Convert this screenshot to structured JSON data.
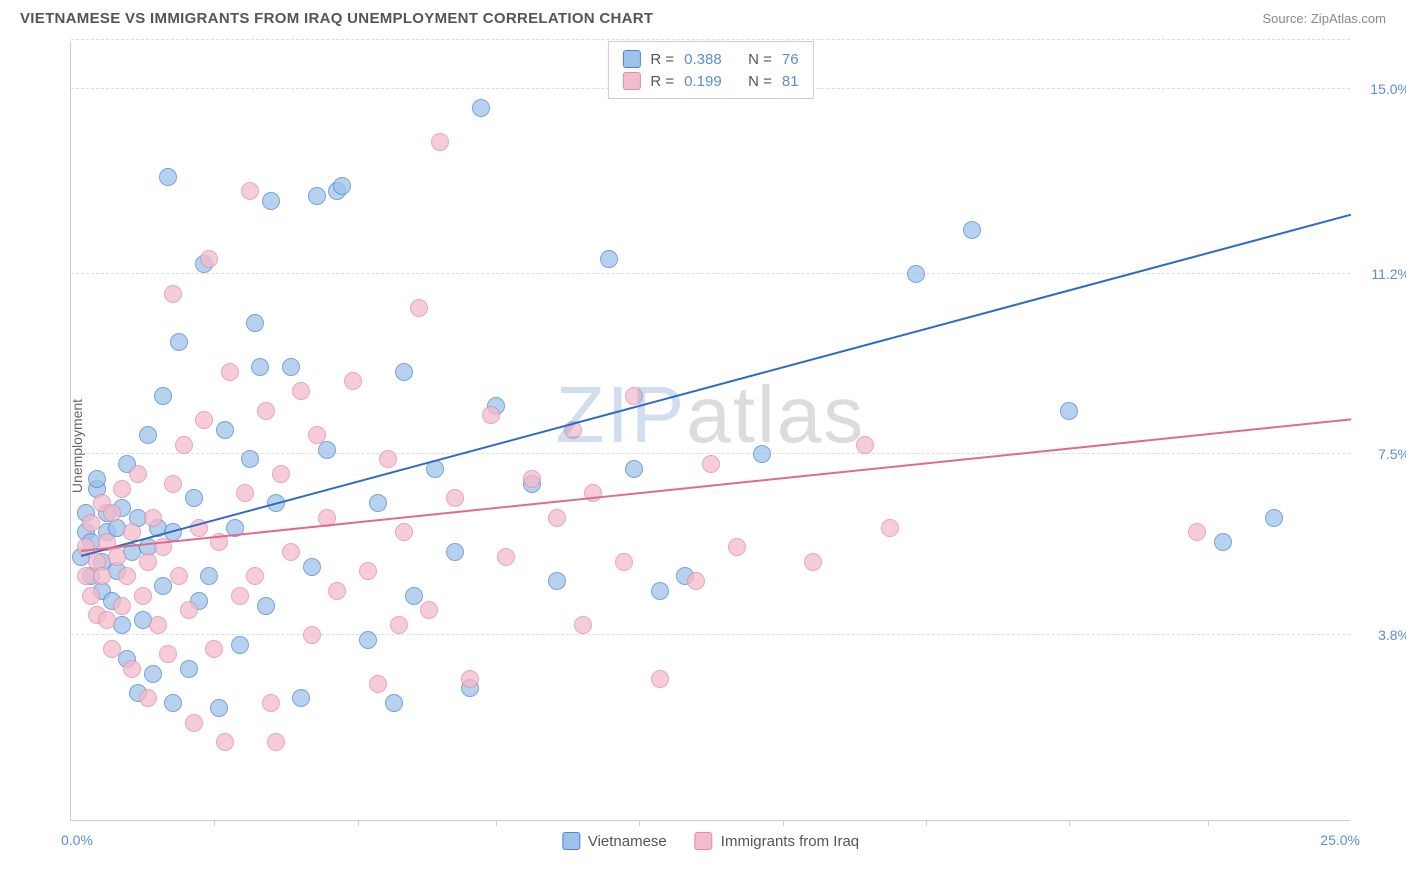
{
  "title": "VIETNAMESE VS IMMIGRANTS FROM IRAQ UNEMPLOYMENT CORRELATION CHART",
  "source_prefix": "Source: ",
  "source_name": "ZipAtlas.com",
  "y_axis_label": "Unemployment",
  "watermark_a": "ZIP",
  "watermark_b": "atlas",
  "chart": {
    "type": "scatter",
    "background_color": "#ffffff",
    "grid_color": "#dddddd",
    "axis_color": "#cccccc",
    "tick_label_color": "#5b8dd6",
    "xlim": [
      0,
      25
    ],
    "ylim": [
      0,
      16
    ],
    "y_ticks": [
      {
        "v": 3.8,
        "label": "3.8%"
      },
      {
        "v": 7.5,
        "label": "7.5%"
      },
      {
        "v": 11.2,
        "label": "11.2%"
      },
      {
        "v": 15.0,
        "label": "15.0%"
      }
    ],
    "x_tick_positions": [
      2.8,
      5.6,
      8.3,
      11.1,
      13.9,
      16.7,
      19.5,
      22.2
    ],
    "x_min_label": "0.0%",
    "x_max_label": "25.0%",
    "point_radius": 9,
    "point_border_width": 1.2,
    "point_fill_opacity": 0.35,
    "series": [
      {
        "key": "vietnamese",
        "label": "Vietnamese",
        "color_border": "#4a86d4",
        "color_fill": "#9ec3ea",
        "trend_color": "#2f6bc0",
        "r_value": "0.388",
        "n_value": "76",
        "trend_line": {
          "x0": 0.2,
          "y0": 5.4,
          "x1": 25,
          "y1": 12.4
        },
        "points": [
          [
            0.2,
            5.4
          ],
          [
            0.3,
            5.9
          ],
          [
            0.3,
            6.3
          ],
          [
            0.4,
            5.0
          ],
          [
            0.4,
            5.7
          ],
          [
            0.5,
            6.8
          ],
          [
            0.5,
            7.0
          ],
          [
            0.6,
            4.7
          ],
          [
            0.6,
            5.3
          ],
          [
            0.7,
            5.9
          ],
          [
            0.7,
            6.3
          ],
          [
            0.8,
            4.5
          ],
          [
            0.9,
            5.1
          ],
          [
            0.9,
            6.0
          ],
          [
            1.0,
            4.0
          ],
          [
            1.0,
            6.4
          ],
          [
            1.1,
            3.3
          ],
          [
            1.1,
            7.3
          ],
          [
            1.2,
            5.5
          ],
          [
            1.3,
            2.6
          ],
          [
            1.3,
            6.2
          ],
          [
            1.4,
            4.1
          ],
          [
            1.5,
            5.6
          ],
          [
            1.5,
            7.9
          ],
          [
            1.6,
            3.0
          ],
          [
            1.7,
            6.0
          ],
          [
            1.8,
            4.8
          ],
          [
            1.8,
            8.7
          ],
          [
            1.9,
            13.2
          ],
          [
            2.0,
            2.4
          ],
          [
            2.0,
            5.9
          ],
          [
            2.1,
            9.8
          ],
          [
            2.3,
            3.1
          ],
          [
            2.4,
            6.6
          ],
          [
            2.5,
            4.5
          ],
          [
            2.6,
            11.4
          ],
          [
            2.7,
            5.0
          ],
          [
            2.9,
            2.3
          ],
          [
            3.0,
            8.0
          ],
          [
            3.2,
            6.0
          ],
          [
            3.3,
            3.6
          ],
          [
            3.5,
            7.4
          ],
          [
            3.6,
            10.2
          ],
          [
            3.8,
            4.4
          ],
          [
            3.9,
            12.7
          ],
          [
            4.0,
            6.5
          ],
          [
            4.3,
            9.3
          ],
          [
            4.5,
            2.5
          ],
          [
            4.7,
            5.2
          ],
          [
            5.0,
            7.6
          ],
          [
            5.2,
            12.9
          ],
          [
            5.3,
            13.0
          ],
          [
            5.8,
            3.7
          ],
          [
            6.0,
            6.5
          ],
          [
            6.3,
            2.4
          ],
          [
            6.5,
            9.2
          ],
          [
            6.7,
            4.6
          ],
          [
            7.1,
            7.2
          ],
          [
            7.5,
            5.5
          ],
          [
            7.8,
            2.7
          ],
          [
            8.0,
            14.6
          ],
          [
            8.3,
            8.5
          ],
          [
            9.0,
            6.9
          ],
          [
            9.5,
            4.9
          ],
          [
            10.5,
            11.5
          ],
          [
            11.0,
            7.2
          ],
          [
            11.5,
            4.7
          ],
          [
            12.0,
            5.0
          ],
          [
            13.5,
            7.5
          ],
          [
            16.5,
            11.2
          ],
          [
            17.6,
            12.1
          ],
          [
            19.5,
            8.4
          ],
          [
            23.5,
            6.2
          ],
          [
            22.5,
            5.7
          ],
          [
            4.8,
            12.8
          ],
          [
            3.7,
            9.3
          ]
        ]
      },
      {
        "key": "iraq",
        "label": "Immigrants from Iraq",
        "color_border": "#e48aa4",
        "color_fill": "#f3bccb",
        "trend_color": "#e06c8c",
        "r_value": "0.199",
        "n_value": "81",
        "trend_line": {
          "x0": 0.2,
          "y0": 5.5,
          "x1": 25,
          "y1": 8.2
        },
        "points": [
          [
            0.3,
            5.0
          ],
          [
            0.3,
            5.6
          ],
          [
            0.4,
            4.6
          ],
          [
            0.4,
            6.1
          ],
          [
            0.5,
            5.3
          ],
          [
            0.5,
            4.2
          ],
          [
            0.6,
            6.5
          ],
          [
            0.6,
            5.0
          ],
          [
            0.7,
            4.1
          ],
          [
            0.7,
            5.7
          ],
          [
            0.8,
            6.3
          ],
          [
            0.8,
            3.5
          ],
          [
            0.9,
            5.4
          ],
          [
            1.0,
            4.4
          ],
          [
            1.0,
            6.8
          ],
          [
            1.1,
            5.0
          ],
          [
            1.2,
            3.1
          ],
          [
            1.2,
            5.9
          ],
          [
            1.3,
            7.1
          ],
          [
            1.4,
            4.6
          ],
          [
            1.5,
            5.3
          ],
          [
            1.5,
            2.5
          ],
          [
            1.6,
            6.2
          ],
          [
            1.7,
            4.0
          ],
          [
            1.8,
            5.6
          ],
          [
            1.9,
            3.4
          ],
          [
            2.0,
            6.9
          ],
          [
            2.0,
            10.8
          ],
          [
            2.1,
            5.0
          ],
          [
            2.2,
            7.7
          ],
          [
            2.3,
            4.3
          ],
          [
            2.4,
            2.0
          ],
          [
            2.5,
            6.0
          ],
          [
            2.6,
            8.2
          ],
          [
            2.8,
            3.5
          ],
          [
            2.9,
            5.7
          ],
          [
            3.0,
            1.6
          ],
          [
            3.1,
            9.2
          ],
          [
            3.3,
            4.6
          ],
          [
            3.4,
            6.7
          ],
          [
            3.6,
            5.0
          ],
          [
            3.8,
            8.4
          ],
          [
            3.9,
            2.4
          ],
          [
            4.1,
            7.1
          ],
          [
            4.3,
            5.5
          ],
          [
            4.5,
            8.8
          ],
          [
            4.7,
            3.8
          ],
          [
            5.0,
            6.2
          ],
          [
            5.2,
            4.7
          ],
          [
            5.5,
            9.0
          ],
          [
            5.8,
            5.1
          ],
          [
            6.0,
            2.8
          ],
          [
            6.2,
            7.4
          ],
          [
            6.5,
            5.9
          ],
          [
            6.8,
            10.5
          ],
          [
            7.0,
            4.3
          ],
          [
            7.2,
            13.9
          ],
          [
            7.5,
            6.6
          ],
          [
            7.8,
            2.9
          ],
          [
            8.2,
            8.3
          ],
          [
            8.5,
            5.4
          ],
          [
            9.0,
            7.0
          ],
          [
            9.5,
            6.2
          ],
          [
            10.0,
            4.0
          ],
          [
            10.2,
            6.7
          ],
          [
            10.8,
            5.3
          ],
          [
            11.0,
            8.7
          ],
          [
            11.5,
            2.9
          ],
          [
            12.2,
            4.9
          ],
          [
            12.5,
            7.3
          ],
          [
            13.0,
            5.6
          ],
          [
            14.5,
            5.3
          ],
          [
            15.5,
            7.7
          ],
          [
            16.0,
            6.0
          ],
          [
            22.0,
            5.9
          ],
          [
            4.0,
            1.6
          ],
          [
            4.8,
            7.9
          ],
          [
            3.5,
            12.9
          ],
          [
            2.7,
            11.5
          ],
          [
            6.4,
            4.0
          ],
          [
            9.8,
            8.0
          ]
        ]
      }
    ]
  },
  "legend_top_stats_prefix_r": "R =",
  "legend_top_stats_prefix_n": "N ="
}
